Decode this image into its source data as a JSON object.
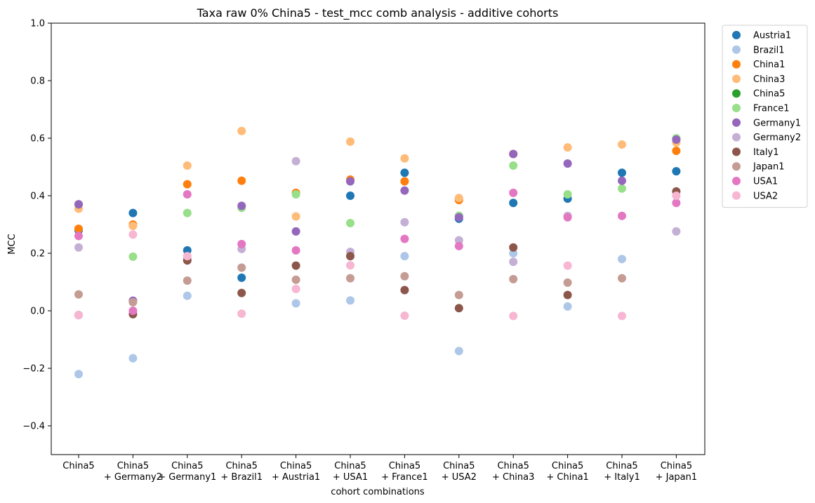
{
  "chart_data": {
    "type": "scatter",
    "title": "Taxa raw 0% China5 - test_mcc comb analysis - additive cohorts",
    "xlabel": "cohort combinations",
    "ylabel": "MCC",
    "ylim": [
      -0.5,
      1.0
    ],
    "yticks": [
      "−0.4",
      "−0.2",
      "0.0",
      "0.2",
      "0.4",
      "0.6",
      "0.8",
      "1.0"
    ],
    "ytick_values": [
      -0.4,
      -0.2,
      0.0,
      0.2,
      0.4,
      0.6,
      0.8,
      1.0
    ],
    "grid": false,
    "legend_position": "outside-top-right",
    "categories": [
      [
        "China5"
      ],
      [
        "China5",
        "+ Germany2"
      ],
      [
        "China5",
        "+ Germany1"
      ],
      [
        "China5",
        "+ Brazil1"
      ],
      [
        "China5",
        "+ Austria1"
      ],
      [
        "China5",
        "+ USA1"
      ],
      [
        "China5",
        "+ France1"
      ],
      [
        "China5",
        "+ USA2"
      ],
      [
        "China5",
        "+ China3"
      ],
      [
        "China5",
        "+ China1"
      ],
      [
        "China5",
        "+ Italy1"
      ],
      [
        "China5",
        "+ Japan1"
      ]
    ],
    "series": [
      {
        "name": "Austria1",
        "color": "#1f77b4",
        "values": [
          0.28,
          0.34,
          0.21,
          0.115,
          null,
          0.4,
          0.48,
          0.32,
          0.375,
          0.39,
          0.48,
          0.485
        ]
      },
      {
        "name": "Brazil1",
        "color": "#aec7e8",
        "values": [
          -0.22,
          -0.165,
          0.052,
          null,
          0.026,
          0.036,
          0.19,
          -0.14,
          0.2,
          0.015,
          0.18,
          null
        ]
      },
      {
        "name": "China1",
        "color": "#ff7f0e",
        "values": [
          0.285,
          0.3,
          0.44,
          0.452,
          0.41,
          0.456,
          0.45,
          0.385,
          0.545,
          null,
          null,
          0.556
        ]
      },
      {
        "name": "China3",
        "color": "#ffbb78",
        "values": [
          0.355,
          0.295,
          0.505,
          0.625,
          0.328,
          0.588,
          0.53,
          0.392,
          null,
          0.568,
          0.578,
          0.585
        ]
      },
      {
        "name": "China5",
        "color": "#2ca02c",
        "values": [
          0.37,
          null,
          null,
          null,
          null,
          null,
          null,
          0.33,
          null,
          null,
          null,
          0.598
        ]
      },
      {
        "name": "France1",
        "color": "#98df8a",
        "values": [
          null,
          0.188,
          0.34,
          0.358,
          0.405,
          0.305,
          null,
          0.33,
          0.505,
          0.405,
          0.425,
          0.6
        ]
      },
      {
        "name": "Germany1",
        "color": "#9467bd",
        "values": [
          0.37,
          0.035,
          null,
          0.365,
          0.276,
          0.45,
          0.418,
          0.325,
          0.545,
          0.512,
          0.452,
          0.595
        ]
      },
      {
        "name": "Germany2",
        "color": "#c5b0d5",
        "values": [
          0.22,
          null,
          0.18,
          0.215,
          0.52,
          0.205,
          0.308,
          0.245,
          0.17,
          0.33,
          null,
          0.276
        ]
      },
      {
        "name": "Italy1",
        "color": "#8c564b",
        "values": [
          -0.015,
          -0.012,
          0.175,
          0.062,
          0.157,
          0.19,
          0.072,
          0.009,
          0.22,
          0.055,
          null,
          0.415
        ]
      },
      {
        "name": "Japan1",
        "color": "#c49c94",
        "values": [
          0.057,
          0.03,
          0.105,
          0.15,
          0.108,
          0.113,
          0.12,
          0.055,
          0.11,
          0.098,
          0.113,
          null
        ]
      },
      {
        "name": "USA1",
        "color": "#e377c2",
        "values": [
          0.26,
          0.0,
          0.405,
          0.232,
          0.21,
          null,
          0.25,
          0.225,
          0.41,
          0.325,
          0.33,
          0.375
        ]
      },
      {
        "name": "USA2",
        "color": "#f7b6d2",
        "values": [
          -0.015,
          0.265,
          0.19,
          -0.01,
          0.076,
          0.158,
          -0.017,
          null,
          -0.018,
          0.157,
          -0.018,
          0.4
        ]
      }
    ]
  }
}
